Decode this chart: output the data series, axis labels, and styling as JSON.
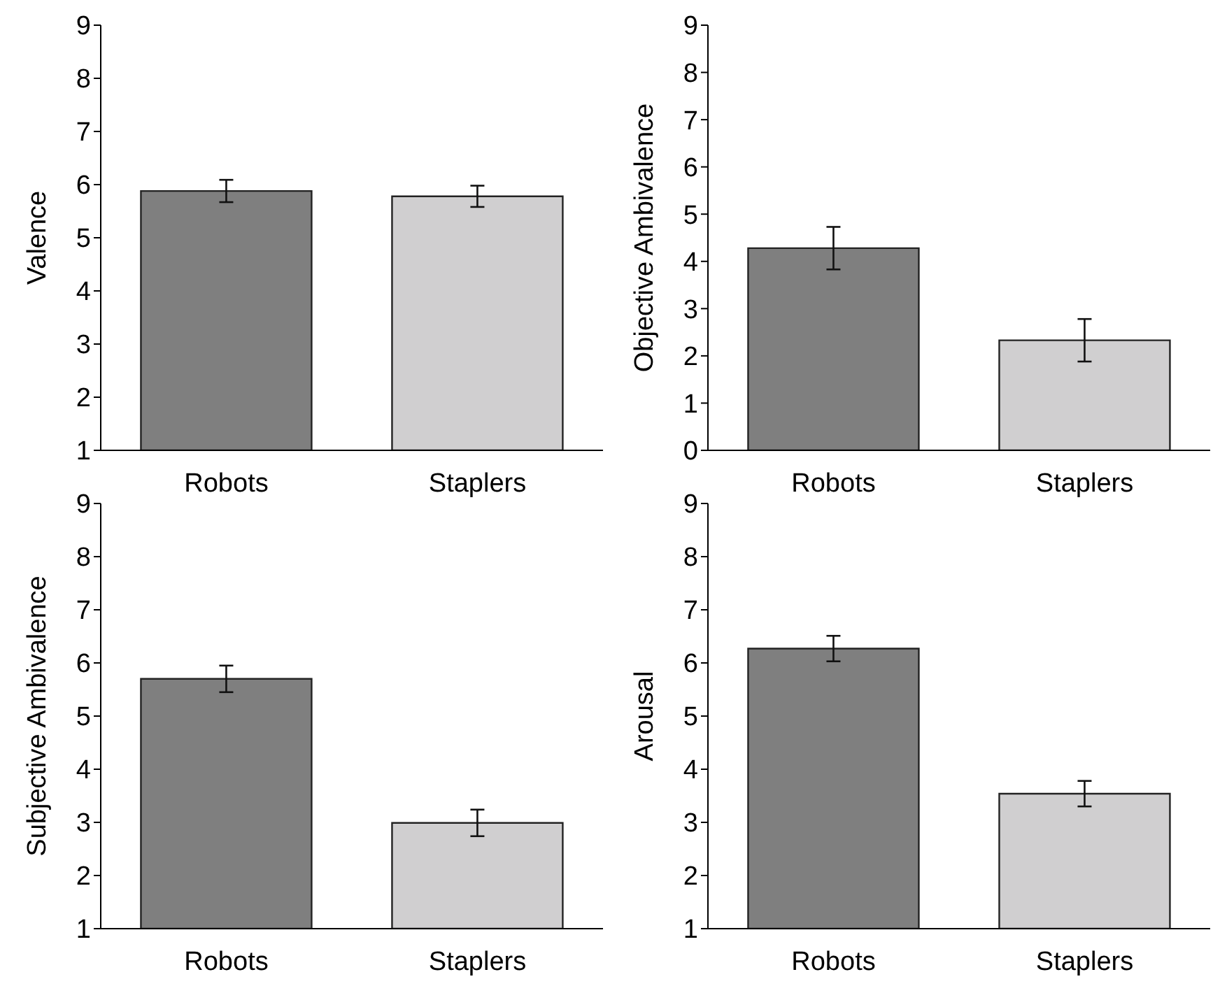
{
  "chart_data": [
    {
      "type": "bar",
      "ylabel": "Valence",
      "categories": [
        "Robots",
        "Staplers"
      ],
      "values": [
        5.88,
        5.78
      ],
      "errors": [
        0.21,
        0.2
      ],
      "colors": [
        "#7f7f7f",
        "#d0cfd0"
      ],
      "ylim": [
        1,
        9
      ],
      "yticks": [
        1,
        2,
        3,
        4,
        5,
        6,
        7,
        8,
        9
      ],
      "grid": false
    },
    {
      "type": "bar",
      "ylabel": "Objective Ambivalence",
      "categories": [
        "Robots",
        "Staplers"
      ],
      "values": [
        4.28,
        2.33
      ],
      "errors": [
        0.45,
        0.45
      ],
      "colors": [
        "#7f7f7f",
        "#d0cfd0"
      ],
      "ylim": [
        0,
        9
      ],
      "yticks": [
        0,
        1,
        2,
        3,
        4,
        5,
        6,
        7,
        8,
        9
      ],
      "grid": false
    },
    {
      "type": "bar",
      "ylabel": "Subjective Ambivalence",
      "categories": [
        "Robots",
        "Staplers"
      ],
      "values": [
        5.7,
        2.99
      ],
      "errors": [
        0.25,
        0.25
      ],
      "colors": [
        "#7f7f7f",
        "#d0cfd0"
      ],
      "ylim": [
        1,
        9
      ],
      "yticks": [
        1,
        2,
        3,
        4,
        5,
        6,
        7,
        8,
        9
      ],
      "grid": false
    },
    {
      "type": "bar",
      "ylabel": "Arousal",
      "categories": [
        "Robots",
        "Staplers"
      ],
      "values": [
        6.27,
        3.54
      ],
      "errors": [
        0.24,
        0.24
      ],
      "colors": [
        "#7f7f7f",
        "#d0cfd0"
      ],
      "ylim": [
        1,
        9
      ],
      "yticks": [
        1,
        2,
        3,
        4,
        5,
        6,
        7,
        8,
        9
      ],
      "grid": false
    }
  ]
}
